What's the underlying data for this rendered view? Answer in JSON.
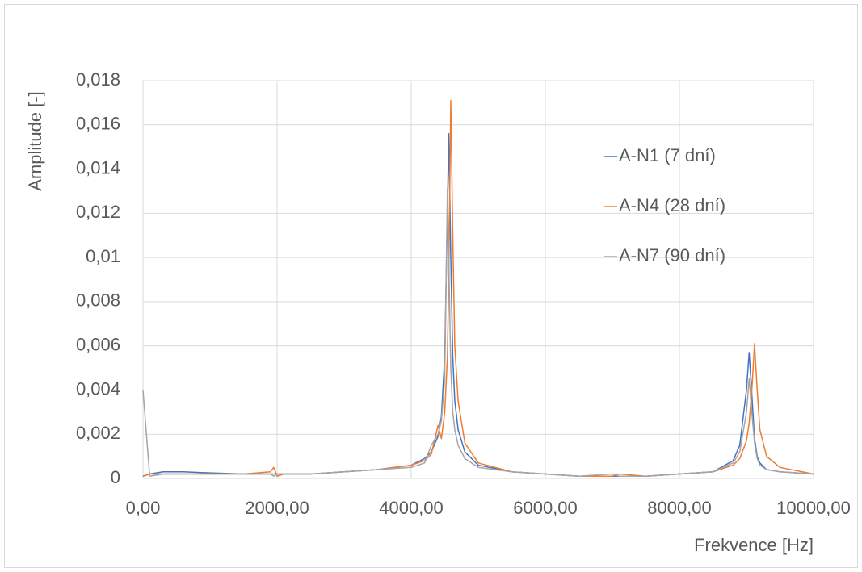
{
  "chart_data": {
    "type": "line",
    "y_label": "Amplitude [-]",
    "x_label": "Frekvence [Hz]",
    "x": [
      0,
      100,
      300,
      600,
      1000,
      1500,
      1900,
      1950,
      2000,
      2100,
      2500,
      3000,
      3500,
      4000,
      4200,
      4300,
      4400,
      4450,
      4500,
      4540,
      4560,
      4590,
      4620,
      4650,
      4700,
      4800,
      5000,
      5500,
      6000,
      6500,
      7000,
      7100,
      7500,
      8000,
      8500,
      8800,
      8900,
      9000,
      9040,
      9080,
      9120,
      9160,
      9200,
      9300,
      9500,
      10000
    ],
    "series": [
      {
        "name": "A-N1 (7 dní)",
        "color": "#4472c4",
        "values": [
          0.0001,
          0.0002,
          0.0003,
          0.0003,
          0.00025,
          0.0002,
          0.0002,
          0.0002,
          0.0002,
          0.0002,
          0.0002,
          0.0003,
          0.0004,
          0.0006,
          0.0009,
          0.0012,
          0.0019,
          0.0028,
          0.0055,
          0.012,
          0.0156,
          0.01,
          0.0055,
          0.0035,
          0.0022,
          0.0012,
          0.0006,
          0.0003,
          0.0002,
          0.0001,
          0.0001,
          0.0001,
          0.0001,
          0.0002,
          0.0003,
          0.0008,
          0.0015,
          0.004,
          0.0057,
          0.0038,
          0.0018,
          0.001,
          0.0007,
          0.0004,
          0.0003,
          0.0002
        ]
      },
      {
        "name": "A-N4 (28 dní)",
        "color": "#ed7d31",
        "values": [
          0.0001,
          0.0002,
          0.0002,
          0.0002,
          0.0002,
          0.0002,
          0.0003,
          0.0005,
          0.0001,
          0.0002,
          0.0002,
          0.0003,
          0.0004,
          0.0006,
          0.0008,
          0.0011,
          0.0024,
          0.0018,
          0.003,
          0.0055,
          0.009,
          0.0171,
          0.011,
          0.006,
          0.0035,
          0.0016,
          0.0007,
          0.0003,
          0.0002,
          0.0001,
          0.0001,
          0.0002,
          0.0001,
          0.0002,
          0.0003,
          0.0006,
          0.0009,
          0.0017,
          0.0025,
          0.004,
          0.0061,
          0.004,
          0.0022,
          0.001,
          0.0005,
          0.0002
        ]
      },
      {
        "name": "A-N7 (90 dní)",
        "color": "#a5a5a5",
        "values": [
          0.004,
          0.0001,
          0.0002,
          0.0002,
          0.0002,
          0.0002,
          0.0002,
          0.0001,
          0.0002,
          0.0002,
          0.0002,
          0.0003,
          0.0004,
          0.0005,
          0.0007,
          0.0015,
          0.002,
          0.0026,
          0.0045,
          0.0131,
          0.01,
          0.005,
          0.003,
          0.0022,
          0.0015,
          0.0009,
          0.0005,
          0.0003,
          0.0002,
          0.0001,
          0.0002,
          0.0001,
          0.0001,
          0.0002,
          0.0003,
          0.0007,
          0.0012,
          0.003,
          0.0045,
          0.003,
          0.0016,
          0.0009,
          0.0006,
          0.0004,
          0.0003,
          0.0002
        ]
      }
    ],
    "xlim": [
      0,
      10000
    ],
    "xticks": [
      {
        "value": 0,
        "label": "0,00"
      },
      {
        "value": 2000,
        "label": "2000,00"
      },
      {
        "value": 4000,
        "label": "4000,00"
      },
      {
        "value": 6000,
        "label": "6000,00"
      },
      {
        "value": 8000,
        "label": "8000,00"
      },
      {
        "value": 10000,
        "label": "10000,00"
      }
    ],
    "ylim": [
      0,
      0.018
    ],
    "yticks": [
      0,
      {
        "value": 0.002,
        "label": "0,002"
      },
      {
        "value": 0.004,
        "label": "0,004"
      },
      {
        "value": 0.006,
        "label": "0,006"
      },
      {
        "value": 0.008,
        "label": "0,008"
      },
      {
        "value": 0.01,
        "label": "0,01"
      },
      {
        "value": 0.012,
        "label": "0,012"
      },
      {
        "value": 0.014,
        "label": "0,014"
      },
      {
        "value": 0.016,
        "label": "0,016"
      },
      {
        "value": 0.018,
        "label": "0,018"
      }
    ],
    "grid": true
  }
}
